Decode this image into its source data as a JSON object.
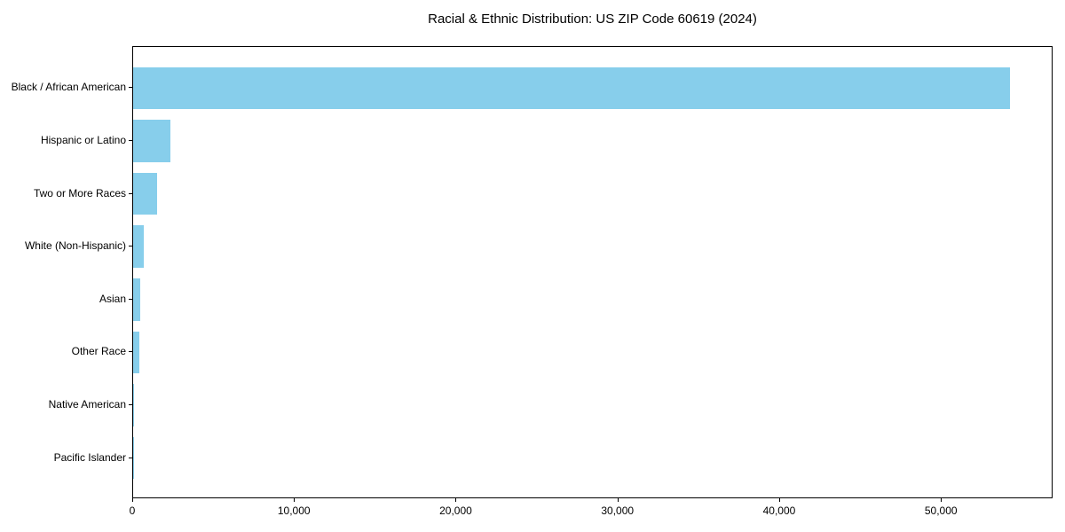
{
  "chart_data": {
    "type": "bar",
    "orientation": "horizontal",
    "title": "Racial & Ethnic Distribution: US ZIP Code 60619 (2024)",
    "xlabel": "",
    "ylabel": "",
    "categories": [
      "Black / African American",
      "Hispanic or Latino",
      "Two or More Races",
      "White (Non-Hispanic)",
      "Asian",
      "Other Race",
      "Native American",
      "Pacific Islander"
    ],
    "values": [
      54230,
      2330,
      1480,
      640,
      420,
      385,
      40,
      10
    ],
    "xlim": [
      0,
      56900
    ],
    "xticks": [
      0,
      10000,
      20000,
      30000,
      40000,
      50000
    ],
    "xtick_labels": [
      "0",
      "10,000",
      "20,000",
      "30,000",
      "40,000",
      "50,000"
    ],
    "bar_color": "#87CEEB",
    "axis_color": "#000000",
    "background_color": "#FFFFFF",
    "grid": false,
    "legend": null
  }
}
